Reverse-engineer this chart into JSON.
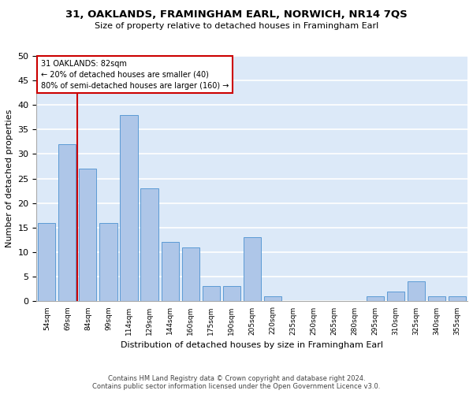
{
  "title1": "31, OAKLANDS, FRAMINGHAM EARL, NORWICH, NR14 7QS",
  "title2": "Size of property relative to detached houses in Framingham Earl",
  "xlabel": "Distribution of detached houses by size in Framingham Earl",
  "ylabel": "Number of detached properties",
  "footer1": "Contains HM Land Registry data © Crown copyright and database right 2024.",
  "footer2": "Contains public sector information licensed under the Open Government Licence v3.0.",
  "categories": [
    "54sqm",
    "69sqm",
    "84sqm",
    "99sqm",
    "114sqm",
    "129sqm",
    "144sqm",
    "160sqm",
    "175sqm",
    "190sqm",
    "205sqm",
    "220sqm",
    "235sqm",
    "250sqm",
    "265sqm",
    "280sqm",
    "295sqm",
    "310sqm",
    "325sqm",
    "340sqm",
    "355sqm"
  ],
  "values": [
    16,
    32,
    27,
    16,
    38,
    23,
    12,
    11,
    3,
    3,
    13,
    1,
    0,
    0,
    0,
    0,
    1,
    2,
    4,
    1,
    1
  ],
  "bar_color": "#aec6e8",
  "bar_edge_color": "#5b9bd5",
  "background_color": "#dce9f8",
  "grid_color": "#ffffff",
  "annotation_line1": "31 OAKLANDS: 82sqm",
  "annotation_line2": "← 20% of detached houses are smaller (40)",
  "annotation_line3": "80% of semi-detached houses are larger (160) →",
  "vline_x": 1.5,
  "vline_color": "#cc0000",
  "annotation_box_color": "#cc0000",
  "ylim": [
    0,
    50
  ],
  "yticks": [
    0,
    5,
    10,
    15,
    20,
    25,
    30,
    35,
    40,
    45,
    50
  ]
}
